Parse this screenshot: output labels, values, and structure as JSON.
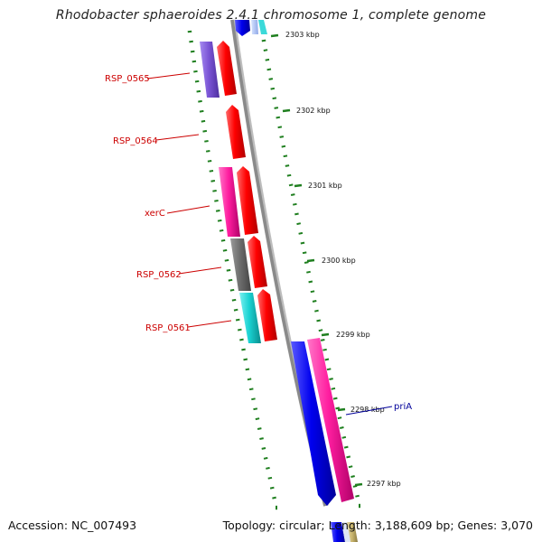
{
  "title": "Rhodobacter sphaeroides 2.4.1 chromosome 1, complete genome",
  "footer": {
    "accession": "Accession: NC_007493",
    "summary": "Topology: circular; Length: 3,188,609 bp; Genes: 3,070"
  },
  "colors": {
    "backbone": "#8a8a8a",
    "tick": "#1f7f1f",
    "label_left": "#cc0000",
    "label_right": "#00009a",
    "red": "#ff0000",
    "purple": "#7b55d6",
    "magenta": "#ff1ea0",
    "gray": "#6e6e6e",
    "cyan": "#19d2d2",
    "blue": "#0000ee",
    "khaki": "#c8b46e"
  },
  "ticks": [
    "2303 kbp",
    "2302 kbp",
    "2301 kbp",
    "2300 kbp",
    "2299 kbp",
    "2298 kbp",
    "2297 kbp"
  ],
  "gene_labels": {
    "left": [
      "RSP_0565",
      "RSP_0564",
      "xerC",
      "RSP_0562",
      "RSP_0561"
    ],
    "right": [
      "priA"
    ]
  }
}
